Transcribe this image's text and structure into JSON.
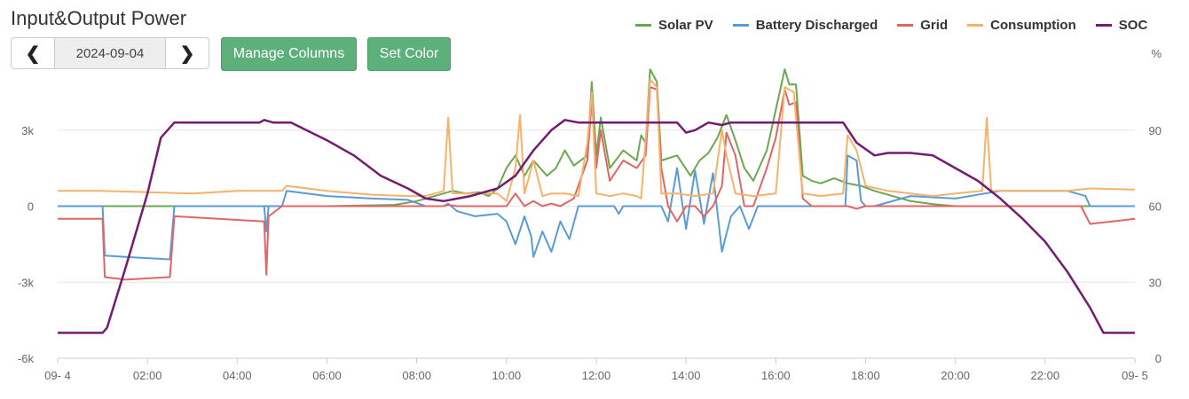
{
  "header": {
    "title": "Input&Output Power",
    "date": "2024-09-04",
    "prev_icon": "chevron-left-icon",
    "next_icon": "chevron-right-icon",
    "prev_glyph": "❮",
    "next_glyph": "❯",
    "manage_columns_label": "Manage Columns",
    "set_color_label": "Set Color"
  },
  "chart_data": {
    "type": "line",
    "title": "Input&Output Power",
    "xlim": [
      0,
      24
    ],
    "x_tick_labels": [
      {
        "x": 0,
        "label": "09- 4"
      },
      {
        "x": 2,
        "label": "02:00"
      },
      {
        "x": 4,
        "label": "04:00"
      },
      {
        "x": 6,
        "label": "06:00"
      },
      {
        "x": 8,
        "label": "08:00"
      },
      {
        "x": 10,
        "label": "10:00"
      },
      {
        "x": 12,
        "label": "12:00"
      },
      {
        "x": 14,
        "label": "14:00"
      },
      {
        "x": 16,
        "label": "16:00"
      },
      {
        "x": 18,
        "label": "18:00"
      },
      {
        "x": 20,
        "label": "20:00"
      },
      {
        "x": 22,
        "label": "22:00"
      },
      {
        "x": 24,
        "label": "09- 5"
      }
    ],
    "y_left": {
      "range": [
        -6000,
        6000
      ],
      "ticks": [
        {
          "v": 3000,
          "label": "3k"
        },
        {
          "v": 0,
          "label": "0"
        },
        {
          "v": -3000,
          "label": "-3k"
        },
        {
          "v": -6000,
          "label": "-6k"
        }
      ]
    },
    "y_right": {
      "unit": "%",
      "range": [
        0,
        120
      ],
      "ticks": [
        {
          "v": 90,
          "label": "90"
        },
        {
          "v": 60,
          "label": "60"
        },
        {
          "v": 30,
          "label": "30"
        },
        {
          "v": 0,
          "label": "0"
        }
      ]
    },
    "series": [
      {
        "name": "Solar PV",
        "color": "#6aa84f",
        "axis": "left",
        "points": [
          [
            0,
            0
          ],
          [
            6,
            0
          ],
          [
            7.5,
            50
          ],
          [
            8,
            200
          ],
          [
            8.5,
            450
          ],
          [
            8.8,
            600
          ],
          [
            9.1,
            500
          ],
          [
            9.4,
            550
          ],
          [
            9.6,
            400
          ],
          [
            9.8,
            700
          ],
          [
            10,
            1500
          ],
          [
            10.2,
            2000
          ],
          [
            10.4,
            1200
          ],
          [
            10.6,
            1800
          ],
          [
            10.9,
            1200
          ],
          [
            11.1,
            1500
          ],
          [
            11.3,
            2200
          ],
          [
            11.5,
            1600
          ],
          [
            11.8,
            2000
          ],
          [
            11.9,
            4900
          ],
          [
            12,
            2000
          ],
          [
            12.1,
            3500
          ],
          [
            12.3,
            1500
          ],
          [
            12.6,
            2200
          ],
          [
            12.9,
            1800
          ],
          [
            13,
            2800
          ],
          [
            13.1,
            2500
          ],
          [
            13.2,
            5400
          ],
          [
            13.35,
            4900
          ],
          [
            13.45,
            1800
          ],
          [
            13.8,
            2000
          ],
          [
            14.1,
            1200
          ],
          [
            14.3,
            1800
          ],
          [
            14.5,
            2100
          ],
          [
            14.7,
            2700
          ],
          [
            14.9,
            3600
          ],
          [
            15.1,
            2600
          ],
          [
            15.3,
            1500
          ],
          [
            15.5,
            1000
          ],
          [
            15.8,
            2200
          ],
          [
            16,
            3800
          ],
          [
            16.2,
            5400
          ],
          [
            16.3,
            4800
          ],
          [
            16.45,
            4800
          ],
          [
            16.6,
            1200
          ],
          [
            16.8,
            1000
          ],
          [
            17,
            900
          ],
          [
            17.3,
            1100
          ],
          [
            17.6,
            900
          ],
          [
            17.9,
            800
          ],
          [
            18.2,
            600
          ],
          [
            18.6,
            400
          ],
          [
            19,
            200
          ],
          [
            19.5,
            80
          ],
          [
            20,
            0
          ],
          [
            24,
            0
          ]
        ]
      },
      {
        "name": "Battery Discharged",
        "color": "#5b9bd5",
        "axis": "left",
        "points": [
          [
            0,
            0
          ],
          [
            1,
            0
          ],
          [
            1.05,
            -1950
          ],
          [
            1.5,
            -2000
          ],
          [
            2.5,
            -2100
          ],
          [
            2.6,
            0
          ],
          [
            4.6,
            0
          ],
          [
            4.65,
            -1000
          ],
          [
            4.7,
            0
          ],
          [
            5,
            0
          ],
          [
            5.1,
            600
          ],
          [
            6,
            400
          ],
          [
            7,
            300
          ],
          [
            7.8,
            250
          ],
          [
            8.2,
            0
          ],
          [
            8.6,
            0
          ],
          [
            8.7,
            100
          ],
          [
            8.9,
            -200
          ],
          [
            9.3,
            -400
          ],
          [
            9.8,
            -300
          ],
          [
            10,
            -600
          ],
          [
            10.2,
            -1500
          ],
          [
            10.4,
            -400
          ],
          [
            10.55,
            -1200
          ],
          [
            10.6,
            -2000
          ],
          [
            10.8,
            -1000
          ],
          [
            11,
            -1800
          ],
          [
            11.2,
            -600
          ],
          [
            11.4,
            -1300
          ],
          [
            11.6,
            0
          ],
          [
            12.4,
            0
          ],
          [
            12.5,
            -300
          ],
          [
            12.6,
            0
          ],
          [
            13.45,
            0
          ],
          [
            13.6,
            -600
          ],
          [
            13.8,
            1500
          ],
          [
            14,
            -900
          ],
          [
            14.2,
            1400
          ],
          [
            14.4,
            -700
          ],
          [
            14.6,
            1300
          ],
          [
            14.8,
            -1800
          ],
          [
            15,
            -400
          ],
          [
            15.2,
            0
          ],
          [
            15.4,
            -900
          ],
          [
            15.6,
            0
          ],
          [
            17.55,
            0
          ],
          [
            17.6,
            2000
          ],
          [
            17.8,
            1800
          ],
          [
            17.9,
            200
          ],
          [
            18,
            0
          ],
          [
            18.2,
            0
          ],
          [
            19,
            400
          ],
          [
            20,
            300
          ],
          [
            21,
            600
          ],
          [
            22.5,
            600
          ],
          [
            22.9,
            400
          ],
          [
            23,
            0
          ],
          [
            24,
            0
          ]
        ]
      },
      {
        "name": "Grid",
        "color": "#e06666",
        "axis": "left",
        "points": [
          [
            0,
            -500
          ],
          [
            1,
            -500
          ],
          [
            1.05,
            -2800
          ],
          [
            1.5,
            -2900
          ],
          [
            2.5,
            -2800
          ],
          [
            2.6,
            -400
          ],
          [
            4.6,
            -600
          ],
          [
            4.65,
            -2700
          ],
          [
            4.7,
            -400
          ],
          [
            5,
            0
          ],
          [
            8.6,
            0
          ],
          [
            8.7,
            50
          ],
          [
            8.9,
            0
          ],
          [
            10,
            0
          ],
          [
            10.2,
            500
          ],
          [
            10.4,
            0
          ],
          [
            10.6,
            200
          ],
          [
            10.8,
            0
          ],
          [
            11,
            100
          ],
          [
            11.2,
            0
          ],
          [
            11.5,
            300
          ],
          [
            11.8,
            1800
          ],
          [
            11.9,
            4200
          ],
          [
            12,
            1500
          ],
          [
            12.1,
            3000
          ],
          [
            12.3,
            1000
          ],
          [
            12.6,
            1800
          ],
          [
            12.9,
            1500
          ],
          [
            13.1,
            2000
          ],
          [
            13.2,
            4700
          ],
          [
            13.35,
            4600
          ],
          [
            13.45,
            1500
          ],
          [
            13.6,
            0
          ],
          [
            13.8,
            -600
          ],
          [
            14,
            0
          ],
          [
            14.2,
            0
          ],
          [
            14.4,
            -400
          ],
          [
            14.6,
            0
          ],
          [
            14.8,
            800
          ],
          [
            14.9,
            2900
          ],
          [
            15.1,
            2000
          ],
          [
            15.3,
            0
          ],
          [
            15.5,
            0
          ],
          [
            15.8,
            1500
          ],
          [
            16,
            2700
          ],
          [
            16.2,
            4600
          ],
          [
            16.3,
            4000
          ],
          [
            16.45,
            4100
          ],
          [
            16.6,
            300
          ],
          [
            16.8,
            0
          ],
          [
            17.6,
            0
          ],
          [
            17.8,
            -100
          ],
          [
            18,
            0
          ],
          [
            22.8,
            0
          ],
          [
            23,
            -700
          ],
          [
            23.5,
            -600
          ],
          [
            24,
            -500
          ]
        ]
      },
      {
        "name": "Consumption",
        "color": "#f6b26b",
        "axis": "left",
        "points": [
          [
            0,
            600
          ],
          [
            1,
            600
          ],
          [
            2,
            550
          ],
          [
            3,
            500
          ],
          [
            4,
            600
          ],
          [
            5,
            600
          ],
          [
            5.1,
            800
          ],
          [
            6,
            600
          ],
          [
            7,
            450
          ],
          [
            7.8,
            400
          ],
          [
            8.2,
            400
          ],
          [
            8.6,
            600
          ],
          [
            8.7,
            3500
          ],
          [
            8.8,
            500
          ],
          [
            9.3,
            500
          ],
          [
            9.8,
            500
          ],
          [
            10,
            200
          ],
          [
            10.2,
            1500
          ],
          [
            10.3,
            3600
          ],
          [
            10.4,
            500
          ],
          [
            10.6,
            1800
          ],
          [
            10.8,
            400
          ],
          [
            11,
            500
          ],
          [
            11.3,
            500
          ],
          [
            11.6,
            400
          ],
          [
            11.8,
            2500
          ],
          [
            11.9,
            4500
          ],
          [
            12,
            500
          ],
          [
            12.3,
            400
          ],
          [
            12.6,
            500
          ],
          [
            12.9,
            400
          ],
          [
            13,
            300
          ],
          [
            13.2,
            5000
          ],
          [
            13.35,
            4700
          ],
          [
            13.45,
            500
          ],
          [
            13.8,
            500
          ],
          [
            14.2,
            400
          ],
          [
            14.6,
            500
          ],
          [
            14.8,
            3000
          ],
          [
            14.9,
            2000
          ],
          [
            15.1,
            500
          ],
          [
            15.5,
            400
          ],
          [
            16,
            500
          ],
          [
            16.2,
            4700
          ],
          [
            16.4,
            4500
          ],
          [
            16.6,
            500
          ],
          [
            17,
            400
          ],
          [
            17.5,
            500
          ],
          [
            17.6,
            2800
          ],
          [
            17.8,
            2200
          ],
          [
            18,
            800
          ],
          [
            18.5,
            600
          ],
          [
            19,
            500
          ],
          [
            19.5,
            400
          ],
          [
            20,
            500
          ],
          [
            20.6,
            600
          ],
          [
            20.7,
            3500
          ],
          [
            20.8,
            600
          ],
          [
            21,
            600
          ],
          [
            22,
            600
          ],
          [
            22.5,
            600
          ],
          [
            23,
            700
          ],
          [
            24,
            650
          ]
        ]
      },
      {
        "name": "SOC",
        "color": "#741b74",
        "axis": "right",
        "points": [
          [
            0,
            10
          ],
          [
            1,
            10
          ],
          [
            1.1,
            12
          ],
          [
            1.5,
            35
          ],
          [
            2,
            65
          ],
          [
            2.3,
            87
          ],
          [
            2.6,
            93
          ],
          [
            3,
            93
          ],
          [
            4,
            93
          ],
          [
            4.5,
            93
          ],
          [
            4.6,
            94
          ],
          [
            4.8,
            93
          ],
          [
            5.2,
            93
          ],
          [
            6,
            86
          ],
          [
            6.6,
            80
          ],
          [
            7.2,
            72
          ],
          [
            7.8,
            67
          ],
          [
            8.2,
            63
          ],
          [
            8.6,
            62
          ],
          [
            9.2,
            64
          ],
          [
            9.8,
            67
          ],
          [
            10.2,
            72
          ],
          [
            10.6,
            82
          ],
          [
            11,
            90
          ],
          [
            11.3,
            94
          ],
          [
            11.6,
            93
          ],
          [
            12,
            93
          ],
          [
            12.5,
            93
          ],
          [
            13,
            93
          ],
          [
            13.5,
            93
          ],
          [
            13.8,
            93
          ],
          [
            14,
            89
          ],
          [
            14.2,
            90
          ],
          [
            14.5,
            93
          ],
          [
            14.8,
            92
          ],
          [
            15,
            93
          ],
          [
            15.5,
            93
          ],
          [
            16,
            93
          ],
          [
            16.5,
            93
          ],
          [
            17,
            93
          ],
          [
            17.5,
            93
          ],
          [
            17.8,
            85
          ],
          [
            18.2,
            80
          ],
          [
            18.5,
            81
          ],
          [
            19,
            81
          ],
          [
            19.5,
            80
          ],
          [
            20,
            75
          ],
          [
            20.5,
            70
          ],
          [
            21,
            63
          ],
          [
            21.5,
            55
          ],
          [
            22,
            46
          ],
          [
            22.5,
            34
          ],
          [
            23,
            20
          ],
          [
            23.3,
            10
          ],
          [
            24,
            10
          ]
        ]
      }
    ]
  }
}
